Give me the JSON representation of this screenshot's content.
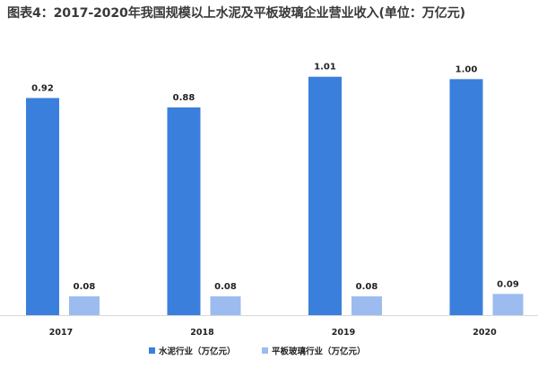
{
  "title": "图表4：2017-2020年我国规模以上水泥及平板玻璃企业营业收入(单位：万亿元)",
  "colors": {
    "series1": "#3a7fdc",
    "series2": "#9cbcf0",
    "axis": "#d9d9d9"
  },
  "chart_data": {
    "type": "bar",
    "title": "图表4：2017-2020年我国规模以上水泥及平板玻璃企业营业收入(单位：万亿元)",
    "categories": [
      "2017",
      "2018",
      "2019",
      "2020"
    ],
    "series": [
      {
        "name": "水泥行业（万亿元）",
        "values": [
          0.92,
          0.88,
          1.01,
          1.0
        ],
        "labels": [
          "0.92",
          "0.88",
          "1.01",
          "1.00"
        ]
      },
      {
        "name": "平板玻璃行业（万亿元）",
        "values": [
          0.08,
          0.08,
          0.08,
          0.09
        ],
        "labels": [
          "0.08",
          "0.08",
          "0.08",
          "0.09"
        ]
      }
    ],
    "ylim": [
      0,
      1.1
    ],
    "grid": false,
    "legend_position": "bottom"
  }
}
